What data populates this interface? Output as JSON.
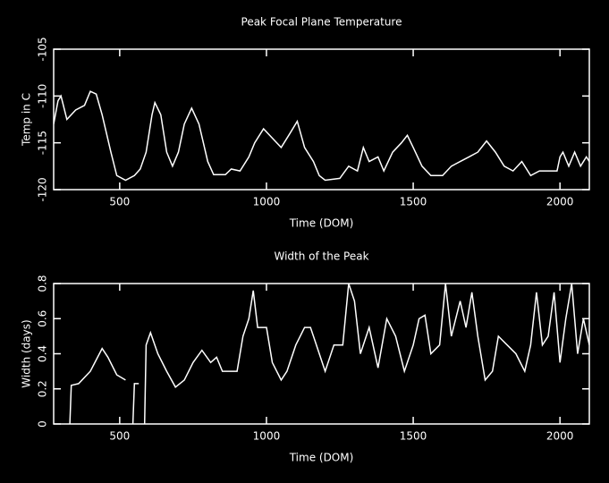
{
  "chart_data": [
    {
      "type": "line",
      "title": "Peak Focal Plane Temperature",
      "x_label": "Time (DOM)",
      "y_label": "Temp in C",
      "xlim": [
        275,
        2100
      ],
      "xticks": [
        500,
        1000,
        1500,
        2000
      ],
      "ylim": [
        -120,
        -105
      ],
      "yticks": [
        -120,
        -115,
        -110,
        -105
      ],
      "x": [
        275,
        290,
        300,
        320,
        350,
        380,
        400,
        420,
        440,
        470,
        490,
        520,
        550,
        570,
        590,
        610,
        620,
        640,
        660,
        680,
        700,
        720,
        745,
        770,
        800,
        820,
        860,
        880,
        910,
        940,
        960,
        990,
        1020,
        1050,
        1080,
        1105,
        1130,
        1160,
        1180,
        1200,
        1250,
        1280,
        1310,
        1330,
        1350,
        1380,
        1400,
        1430,
        1460,
        1480,
        1500,
        1530,
        1560,
        1600,
        1630,
        1660,
        1690,
        1720,
        1750,
        1780,
        1810,
        1840,
        1870,
        1900,
        1930,
        1960,
        1990,
        2000,
        2010,
        2030,
        2050,
        2070,
        2090,
        2100
      ],
      "series": [
        {
          "color": "#ffffff",
          "values": [
            -113,
            -110.5,
            -110,
            -112.5,
            -111.5,
            -111,
            -109.5,
            -109.8,
            -112,
            -116,
            -118.5,
            -119,
            -118.5,
            -117.8,
            -116,
            -112,
            -110.7,
            -112,
            -116,
            -117.5,
            -116,
            -113,
            -111.3,
            -113,
            -117,
            -118.4,
            -118.4,
            -117.8,
            -118,
            -116.5,
            -115,
            -113.5,
            -114.5,
            -115.5,
            -114,
            -112.7,
            -115.5,
            -117,
            -118.5,
            -119,
            -118.8,
            -117.5,
            -118,
            -115.5,
            -117,
            -116.5,
            -118,
            -116,
            -115,
            -114.2,
            -115.5,
            -117.5,
            -118.5,
            -118.5,
            -117.5,
            -117,
            -116.5,
            -116,
            -114.8,
            -116,
            -117.5,
            -118,
            -117,
            -118.5,
            -118,
            -118,
            -118,
            -116.5,
            -116,
            -117.5,
            -116,
            -117.5,
            -116.5,
            -117
          ]
        }
      ]
    },
    {
      "type": "line",
      "title": "Width of the Peak",
      "x_label": "Time (DOM)",
      "y_label": "Width (days)",
      "xlim": [
        275,
        2100
      ],
      "xticks": [
        500,
        1000,
        1500,
        2000
      ],
      "ylim": [
        0,
        0.8
      ],
      "yticks": [
        0,
        0.2,
        0.4,
        0.6,
        0.8
      ],
      "x": [
        330,
        335,
        360,
        400,
        440,
        460,
        490,
        520,
        530,
        545,
        550,
        565,
        575,
        585,
        590,
        605,
        630,
        660,
        690,
        720,
        750,
        780,
        810,
        830,
        850,
        900,
        920,
        940,
        955,
        970,
        1000,
        1020,
        1050,
        1070,
        1100,
        1130,
        1150,
        1170,
        1200,
        1230,
        1260,
        1280,
        1300,
        1320,
        1350,
        1380,
        1410,
        1440,
        1470,
        1500,
        1520,
        1540,
        1560,
        1590,
        1610,
        1630,
        1660,
        1680,
        1700,
        1720,
        1745,
        1770,
        1790,
        1820,
        1850,
        1880,
        1900,
        1920,
        1940,
        1960,
        1980,
        2000,
        2020,
        2040,
        2060,
        2080,
        2100
      ],
      "series": [
        {
          "color": "#ffffff",
          "values": [
            0,
            0.22,
            0.23,
            0.3,
            0.43,
            0.38,
            0.28,
            0.25,
            null,
            0,
            0.23,
            0.23,
            null,
            0,
            0.45,
            0.52,
            0.4,
            0.3,
            0.21,
            0.25,
            0.35,
            0.42,
            0.35,
            0.38,
            0.3,
            0.3,
            0.5,
            0.6,
            0.76,
            0.55,
            0.55,
            0.35,
            0.25,
            0.3,
            0.45,
            0.55,
            0.55,
            0.45,
            0.3,
            0.45,
            0.45,
            0.8,
            0.7,
            0.4,
            0.55,
            0.32,
            0.6,
            0.5,
            0.3,
            0.45,
            0.6,
            0.62,
            0.4,
            0.45,
            0.8,
            0.5,
            0.7,
            0.55,
            0.75,
            0.5,
            0.25,
            0.3,
            0.5,
            0.45,
            0.4,
            0.3,
            0.45,
            0.75,
            0.45,
            0.5,
            0.75,
            0.35,
            0.6,
            0.8,
            0.4,
            0.6,
            0.45
          ]
        }
      ]
    }
  ]
}
